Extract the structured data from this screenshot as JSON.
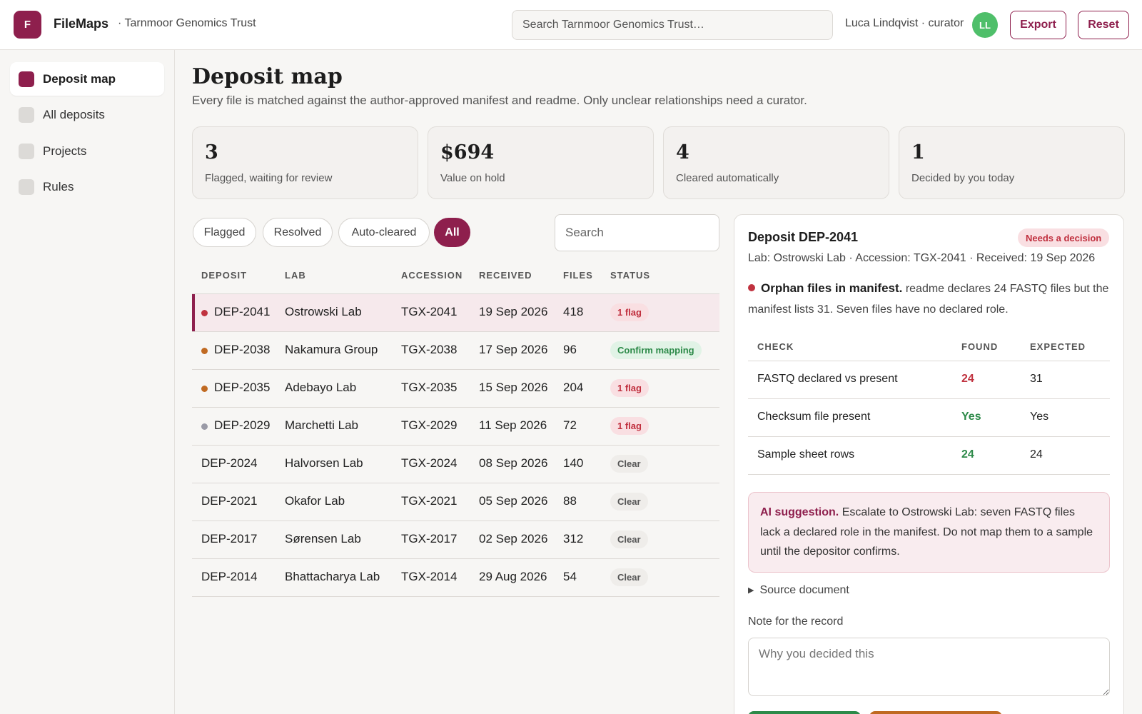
{
  "app": {
    "logo_letter": "F",
    "name": "FileMaps",
    "org": "· Tarnmoor Genomics Trust"
  },
  "header": {
    "search_placeholder": "Search Tarnmoor Genomics Trust…",
    "user": "Luca Lindqvist · curator",
    "avatar_initials": "LL",
    "export_label": "Export",
    "reset_label": "Reset"
  },
  "sidebar": {
    "items": [
      {
        "label": "Deposit map",
        "active": true
      },
      {
        "label": "All deposits",
        "active": false
      },
      {
        "label": "Projects",
        "active": false
      },
      {
        "label": "Rules",
        "active": false
      }
    ]
  },
  "page": {
    "title": "Deposit map",
    "subtitle": "Every file is matched against the author-approved manifest and readme. Only unclear relationships need a curator."
  },
  "stats": [
    {
      "value": "3",
      "label": "Flagged, waiting for review"
    },
    {
      "value": "$694",
      "label": "Value on hold"
    },
    {
      "value": "4",
      "label": "Cleared automatically"
    },
    {
      "value": "1",
      "label": "Decided by you today"
    }
  ],
  "filters": {
    "chips": [
      "Flagged",
      "Resolved",
      "Auto-cleared",
      "All"
    ],
    "active": "All",
    "search_placeholder": "Search"
  },
  "table": {
    "headers": [
      "DEPOSIT",
      "LAB",
      "ACCESSION",
      "RECEIVED",
      "FILES",
      "STATUS"
    ],
    "rows": [
      {
        "deposit": "DEP-2041",
        "lab": "Ostrowski Lab",
        "accession": "TGX-2041",
        "received": "19 Sep 2026",
        "files": "418",
        "status": "1 flag",
        "status_type": "flag",
        "dot": "#c0323f",
        "selected": true
      },
      {
        "deposit": "DEP-2038",
        "lab": "Nakamura Group",
        "accession": "TGX-2038",
        "received": "17 Sep 2026",
        "files": "96",
        "status": "Confirm mapping",
        "status_type": "confirm",
        "dot": "#c06a22",
        "selected": false
      },
      {
        "deposit": "DEP-2035",
        "lab": "Adebayo Lab",
        "accession": "TGX-2035",
        "received": "15 Sep 2026",
        "files": "204",
        "status": "1 flag",
        "status_type": "flag",
        "dot": "#c06a22",
        "selected": false
      },
      {
        "deposit": "DEP-2029",
        "lab": "Marchetti Lab",
        "accession": "TGX-2029",
        "received": "11 Sep 2026",
        "files": "72",
        "status": "1 flag",
        "status_type": "flag",
        "dot": "#9a9aa6",
        "selected": false
      },
      {
        "deposit": "DEP-2024",
        "lab": "Halvorsen Lab",
        "accession": "TGX-2024",
        "received": "08 Sep 2026",
        "files": "140",
        "status": "Clear",
        "status_type": "clear",
        "dot": "",
        "selected": false
      },
      {
        "deposit": "DEP-2021",
        "lab": "Okafor Lab",
        "accession": "TGX-2021",
        "received": "05 Sep 2026",
        "files": "88",
        "status": "Clear",
        "status_type": "clear",
        "dot": "",
        "selected": false
      },
      {
        "deposit": "DEP-2017",
        "lab": "Sørensen Lab",
        "accession": "TGX-2017",
        "received": "02 Sep 2026",
        "files": "312",
        "status": "Clear",
        "status_type": "clear",
        "dot": "",
        "selected": false
      },
      {
        "deposit": "DEP-2014",
        "lab": "Bhattacharya Lab",
        "accession": "TGX-2014",
        "received": "29 Aug 2026",
        "files": "54",
        "status": "Clear",
        "status_type": "clear",
        "dot": "",
        "selected": false
      }
    ]
  },
  "detail": {
    "title": "Deposit DEP-2041",
    "badge": "Needs a decision",
    "meta": "Lab: Ostrowski Lab · Accession: TGX-2041 · Received: 19 Sep 2026",
    "issue_title": "Orphan files in manifest.",
    "issue_text": "readme declares 24 FASTQ files but the manifest lists 31. Seven files have no declared role.",
    "checks_headers": [
      "CHECK",
      "FOUND",
      "EXPECTED"
    ],
    "checks": [
      {
        "check": "FASTQ declared vs present",
        "found": "24",
        "expected": "31",
        "ok": false
      },
      {
        "check": "Checksum file present",
        "found": "Yes",
        "expected": "Yes",
        "ok": true
      },
      {
        "check": "Sample sheet rows",
        "found": "24",
        "expected": "24",
        "ok": true
      }
    ],
    "ai_label": "AI suggestion.",
    "ai_text": "Escalate to Ostrowski Lab: seven FASTQ files lack a declared role in the manifest. Do not map them to a sample until the depositor confirms.",
    "source_label": "Source document",
    "note_label": "Note for the record",
    "note_placeholder": "Why you decided this"
  },
  "colors": {
    "accent": "#8e1f4d",
    "danger": "#c0323f",
    "success": "#2d8a49",
    "warning": "#c06a22",
    "action_green": "#2d8a49",
    "action_orange": "#c06a22"
  }
}
